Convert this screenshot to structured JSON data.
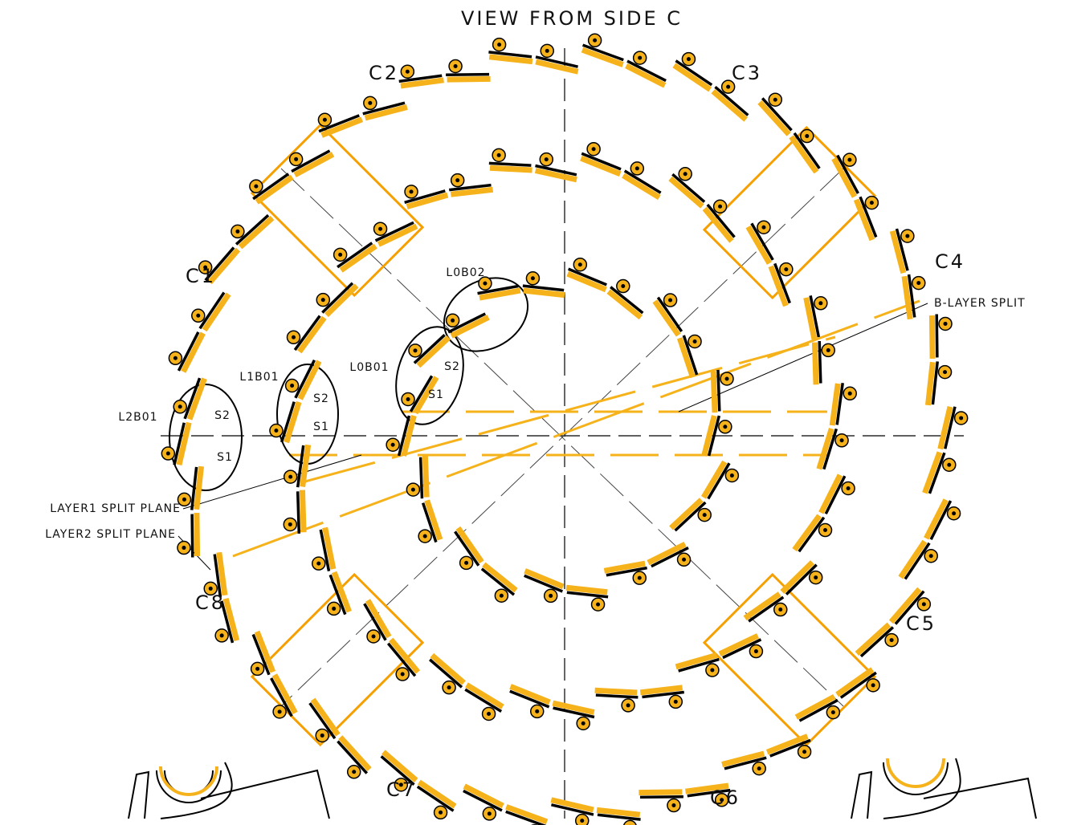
{
  "title": "VIEW FROM SIDE C",
  "sectors": [
    "C1",
    "C2",
    "C3",
    "C4",
    "C5",
    "C6",
    "C7",
    "C8"
  ],
  "modules": [
    {
      "name": "L0B02"
    },
    {
      "name": "L0B01",
      "sides": [
        "S2",
        "S1"
      ]
    },
    {
      "name": "L1B01",
      "sides": [
        "S2",
        "S1"
      ]
    },
    {
      "name": "L2B01",
      "sides": [
        "S2",
        "S1"
      ]
    }
  ],
  "annotations": {
    "b_layer": "B-LAYER SPLIT",
    "layer1": "LAYER1 SPLIT PLANE",
    "layer2": "LAYER2 SPLIT PLANE"
  }
}
